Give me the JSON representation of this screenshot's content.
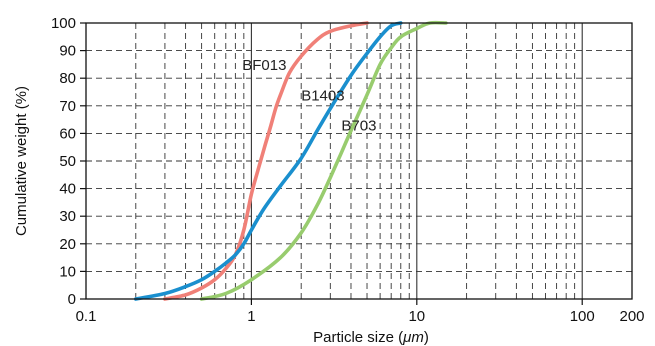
{
  "chart_data": {
    "type": "line",
    "xlabel_prefix": "Particle size (",
    "xlabel_unit": "μm",
    "xlabel_suffix": ")",
    "ylabel": "Cumulative weight (%)",
    "x_scale": "log",
    "xlim": [
      0.1,
      200
    ],
    "ylim": [
      0,
      100
    ],
    "x_ticks": [
      {
        "value": 0.1,
        "label": "0.1"
      },
      {
        "value": 1,
        "label": "1"
      },
      {
        "value": 10,
        "label": "10"
      },
      {
        "value": 100,
        "label": "100"
      },
      {
        "value": 200,
        "label": "200"
      }
    ],
    "y_ticks": [
      {
        "value": 0,
        "label": "0"
      },
      {
        "value": 10,
        "label": "10"
      },
      {
        "value": 20,
        "label": "20"
      },
      {
        "value": 30,
        "label": "30"
      },
      {
        "value": 40,
        "label": "40"
      },
      {
        "value": 50,
        "label": "50"
      },
      {
        "value": 60,
        "label": "60"
      },
      {
        "value": 70,
        "label": "70"
      },
      {
        "value": 80,
        "label": "80"
      },
      {
        "value": 90,
        "label": "90"
      },
      {
        "value": 100,
        "label": "100"
      }
    ],
    "grid": "dashed, major and minor decades on x, every 10 on y",
    "series": [
      {
        "name": "BF013",
        "color": "#f08078",
        "points": [
          [
            0.3,
            0
          ],
          [
            0.4,
            1.5
          ],
          [
            0.5,
            4
          ],
          [
            0.6,
            7
          ],
          [
            0.7,
            11
          ],
          [
            0.8,
            16
          ],
          [
            0.9,
            25
          ],
          [
            1.0,
            38
          ],
          [
            1.1,
            47
          ],
          [
            1.2,
            55
          ],
          [
            1.3,
            62
          ],
          [
            1.4,
            69
          ],
          [
            1.5,
            74
          ],
          [
            1.7,
            82
          ],
          [
            2.0,
            88
          ],
          [
            2.5,
            94
          ],
          [
            3.0,
            97
          ],
          [
            4.0,
            99
          ],
          [
            5.0,
            100
          ]
        ]
      },
      {
        "name": "B1403",
        "color": "#1a8fce",
        "points": [
          [
            0.2,
            0
          ],
          [
            0.3,
            2
          ],
          [
            0.4,
            4.5
          ],
          [
            0.5,
            7
          ],
          [
            0.6,
            10
          ],
          [
            0.7,
            13
          ],
          [
            0.8,
            16
          ],
          [
            0.9,
            20
          ],
          [
            1.0,
            25
          ],
          [
            1.2,
            33
          ],
          [
            1.5,
            41
          ],
          [
            2.0,
            51
          ],
          [
            2.5,
            61
          ],
          [
            3.0,
            69
          ],
          [
            4.0,
            81
          ],
          [
            5.0,
            89
          ],
          [
            6.0,
            95
          ],
          [
            7.0,
            99
          ],
          [
            8.0,
            100
          ]
        ]
      },
      {
        "name": "B703",
        "color": "#98cc6e",
        "points": [
          [
            0.5,
            0
          ],
          [
            0.7,
            2
          ],
          [
            1.0,
            7
          ],
          [
            1.5,
            15
          ],
          [
            2.0,
            24
          ],
          [
            2.5,
            34
          ],
          [
            3.0,
            44
          ],
          [
            3.5,
            53
          ],
          [
            4.0,
            61
          ],
          [
            5.0,
            74
          ],
          [
            6.0,
            85
          ],
          [
            7.0,
            91
          ],
          [
            8.0,
            95
          ],
          [
            10.0,
            98
          ],
          [
            12.0,
            100
          ],
          [
            15.0,
            100
          ]
        ]
      }
    ],
    "annotations": [
      {
        "text": "BF013",
        "x": 0.88,
        "y": 83
      },
      {
        "text": "B1403",
        "x": 2.0,
        "y": 72
      },
      {
        "text": "B703",
        "x": 3.5,
        "y": 61
      }
    ]
  }
}
